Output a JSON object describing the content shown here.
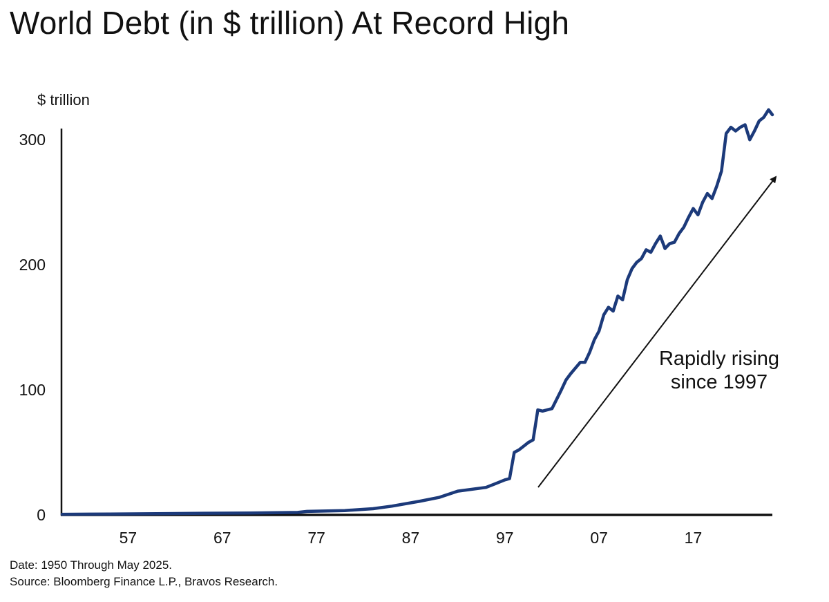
{
  "chart_data": {
    "type": "line",
    "title": "World Debt (in $ trillion) At Record High",
    "ylabel": "$ trillion",
    "xlabel": "",
    "ylim": [
      0,
      320
    ],
    "xlim": [
      1950,
      2025.4
    ],
    "y_ticks": [
      0,
      100,
      200,
      300
    ],
    "x_ticks": [
      {
        "year": 1957,
        "label": "57"
      },
      {
        "year": 1967,
        "label": "67"
      },
      {
        "year": 1977,
        "label": "77"
      },
      {
        "year": 1987,
        "label": "87"
      },
      {
        "year": 1997,
        "label": "97"
      },
      {
        "year": 2007,
        "label": "07"
      },
      {
        "year": 2017,
        "label": "17"
      }
    ],
    "grid": false,
    "line_color": "#1c3a7a",
    "series": [
      {
        "x": [
          1950,
          1955,
          1960,
          1965,
          1970,
          1975,
          1976,
          1980,
          1983,
          1985,
          1988,
          1990,
          1992,
          1995,
          1996,
          1997,
          1997.5,
          1998,
          1998.5,
          1999,
          1999.5,
          2000,
          2000.5,
          2001,
          2002,
          2003,
          2003.5,
          2004,
          2005,
          2005.5,
          2006,
          2006.5,
          2007,
          2007.5,
          2008,
          2008.5,
          2009,
          2009.5,
          2010,
          2010.5,
          2011,
          2011.5,
          2012,
          2012.5,
          2013,
          2013.5,
          2014,
          2014.5,
          2015,
          2015.5,
          2016,
          2016.5,
          2017,
          2017.5,
          2018,
          2018.5,
          2019,
          2019.5,
          2020,
          2020.5,
          2021,
          2021.5,
          2022,
          2022.5,
          2023,
          2023.5,
          2024,
          2024.5,
          2025,
          2025.4
        ],
        "y": [
          0.5,
          0.7,
          1,
          1.3,
          1.5,
          2,
          2.8,
          3.5,
          5,
          7,
          11,
          14,
          19,
          22,
          25,
          28,
          29,
          50,
          52,
          55,
          58,
          60,
          84,
          83,
          85,
          100,
          108,
          113,
          122,
          122,
          130,
          140,
          147,
          160,
          166,
          163,
          175,
          172,
          188,
          197,
          202,
          205,
          212,
          210,
          217,
          223,
          213,
          217,
          218,
          225,
          230,
          238,
          245,
          240,
          250,
          257,
          253,
          263,
          275,
          305,
          310,
          307,
          310,
          312,
          300,
          307,
          315,
          318,
          324,
          320
        ]
      }
    ],
    "annotation": {
      "line1": "Rapidly rising",
      "line2": "since 1997"
    }
  },
  "footnotes": {
    "date": "Date: 1950 Through May 2025.",
    "source": "Source: Bloomberg Finance L.P., Bravos Research."
  }
}
